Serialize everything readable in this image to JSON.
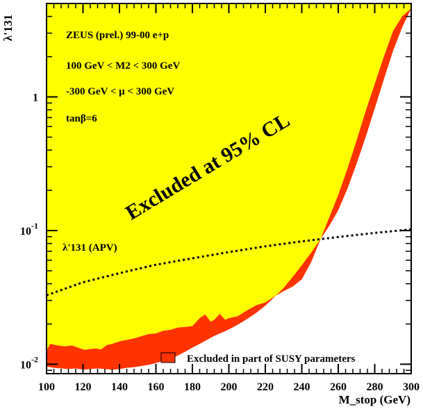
{
  "chart_data": {
    "type": "area",
    "title": "",
    "xlabel": "M_stop (GeV)",
    "ylabel": "λ'131",
    "xlim": [
      100,
      300
    ],
    "ylim": [
      0.0085,
      5.0
    ],
    "yscale": "log",
    "grid": false,
    "x_ticks": [
      100,
      120,
      140,
      160,
      180,
      200,
      220,
      240,
      260,
      280,
      300
    ],
    "y_ticks": [
      {
        "value": 0.01,
        "label": "10^-2"
      },
      {
        "value": 0.1,
        "label": "10^-1"
      },
      {
        "value": 1,
        "label": "1"
      }
    ],
    "annotations": [
      "ZEUS (prel.) 99-00 e+p",
      "100 GeV < M2 < 300 GeV",
      "-300 GeV < μ < 300 GeV",
      "tanβ=6",
      "Excluded at 95% CL",
      "λ'131 (APV)"
    ],
    "legend": {
      "placement": "bottom-right",
      "entries": [
        {
          "label": "Excluded in part of SUSY parameters",
          "color": "#ff3300"
        }
      ]
    },
    "colors": {
      "excluded_95": "#ffff00",
      "excluded_partial": "#ff3300",
      "outline": "#000000"
    },
    "series": [
      {
        "name": "Excluded at 95% CL",
        "role": "excluded-95-lower-boundary",
        "x": [
          100,
          102,
          105,
          108,
          110,
          114,
          118,
          121,
          124,
          127,
          130,
          133,
          136,
          140,
          144,
          148,
          152,
          156,
          160,
          164,
          168,
          172,
          176,
          180,
          184,
          187,
          190,
          192,
          195,
          198,
          200,
          205,
          210,
          215,
          220,
          225,
          230,
          235,
          240,
          245,
          250,
          253,
          256,
          260,
          265,
          270,
          275,
          280,
          285,
          290,
          295,
          300
        ],
        "y": [
          0.0126,
          0.0142,
          0.0139,
          0.0137,
          0.0136,
          0.0138,
          0.0132,
          0.0128,
          0.013,
          0.0131,
          0.0129,
          0.0139,
          0.0142,
          0.0148,
          0.0152,
          0.0156,
          0.0162,
          0.0168,
          0.017,
          0.0178,
          0.0181,
          0.0188,
          0.019,
          0.0193,
          0.0221,
          0.0236,
          0.0208,
          0.0215,
          0.0238,
          0.0215,
          0.0221,
          0.0229,
          0.0253,
          0.0276,
          0.029,
          0.0321,
          0.0352,
          0.0381,
          0.0431,
          0.0575,
          0.084,
          0.107,
          0.135,
          0.185,
          0.29,
          0.47,
          0.78,
          1.25,
          2.0,
          3.1,
          4.0,
          4.6
        ]
      },
      {
        "name": "Excluded in part of SUSY parameters",
        "role": "partial-exclusion-lower-boundary",
        "x": [
          100,
          104,
          108,
          112,
          116,
          120,
          124,
          128,
          132,
          136,
          140,
          144,
          148,
          152,
          156,
          160,
          164,
          168,
          172,
          176,
          180,
          184,
          188,
          192,
          196,
          200,
          205,
          210,
          215,
          220,
          225,
          230,
          235,
          240,
          245,
          250,
          255,
          260,
          265,
          270,
          275,
          280,
          285,
          290,
          295,
          300
        ],
        "y": [
          0.0096,
          0.0094,
          0.0093,
          0.0092,
          0.0093,
          0.0091,
          0.0092,
          0.0093,
          0.0092,
          0.0091,
          0.0092,
          0.0094,
          0.0095,
          0.0097,
          0.0099,
          0.0102,
          0.0106,
          0.011,
          0.0116,
          0.0124,
          0.0133,
          0.0142,
          0.0152,
          0.0163,
          0.0172,
          0.0182,
          0.0198,
          0.0218,
          0.0242,
          0.0274,
          0.0318,
          0.0372,
          0.045,
          0.055,
          0.068,
          0.085,
          0.108,
          0.142,
          0.205,
          0.315,
          0.5,
          0.82,
          1.35,
          2.2,
          3.3,
          4.6
        ]
      },
      {
        "name": "λ'131 (APV)",
        "role": "apv-limit",
        "style": "dotted",
        "x": [
          100,
          120,
          140,
          160,
          180,
          200,
          220,
          240,
          260,
          280,
          300
        ],
        "y": [
          0.0328,
          0.041,
          0.048,
          0.0555,
          0.062,
          0.069,
          0.0762,
          0.083,
          0.0895,
          0.096,
          0.102
        ]
      }
    ]
  }
}
